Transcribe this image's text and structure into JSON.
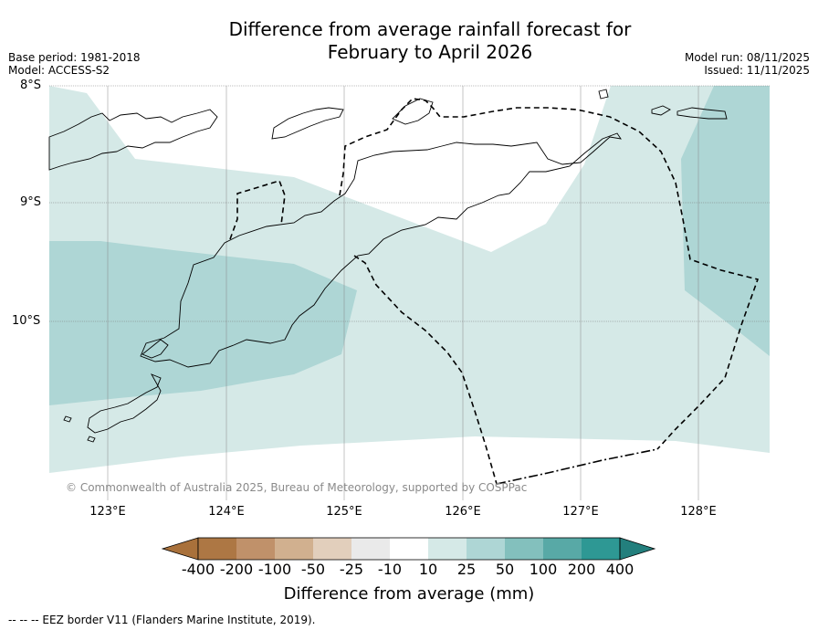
{
  "title": {
    "line1": "Difference from average rainfall forecast for",
    "line2": "February to April 2026"
  },
  "meta_left": {
    "base_period": "Base period: 1981-2018",
    "model": "Model: ACCESS-S2"
  },
  "meta_right": {
    "model_run": "Model run: 08/11/2025",
    "issued": "Issued: 11/11/2025"
  },
  "map": {
    "lat_labels": [
      "8°S",
      "9°S",
      "10°S"
    ],
    "lon_labels": [
      "123°E",
      "124°E",
      "125°E",
      "126°E",
      "127°E",
      "128°E"
    ],
    "copyright": "© Commonwealth of Australia 2025, Bureau of Meteorology, supported by COSPPac",
    "colors": {
      "class_10_25": "#d5e9e7",
      "class_25_50": "#aed6d5",
      "land_outline": "#000000"
    }
  },
  "colorbar": {
    "title": "Difference from average (mm)",
    "tick_labels": [
      "-400",
      "-200",
      "-100",
      "-50",
      "-25",
      "-10",
      "10",
      "25",
      "50",
      "100",
      "200",
      "400"
    ],
    "colors": [
      "#a9713b",
      "#ad7744",
      "#c0916a",
      "#d1b08f",
      "#e2cfbc",
      "#eaeaea",
      "#ffffff",
      "#d5e9e7",
      "#aed6d5",
      "#83c0bd",
      "#58a9a6",
      "#2e9894",
      "#237f7d"
    ]
  },
  "footer": "--  --  -- EEZ border V11 (Flanders Marine Institute, 2019)."
}
